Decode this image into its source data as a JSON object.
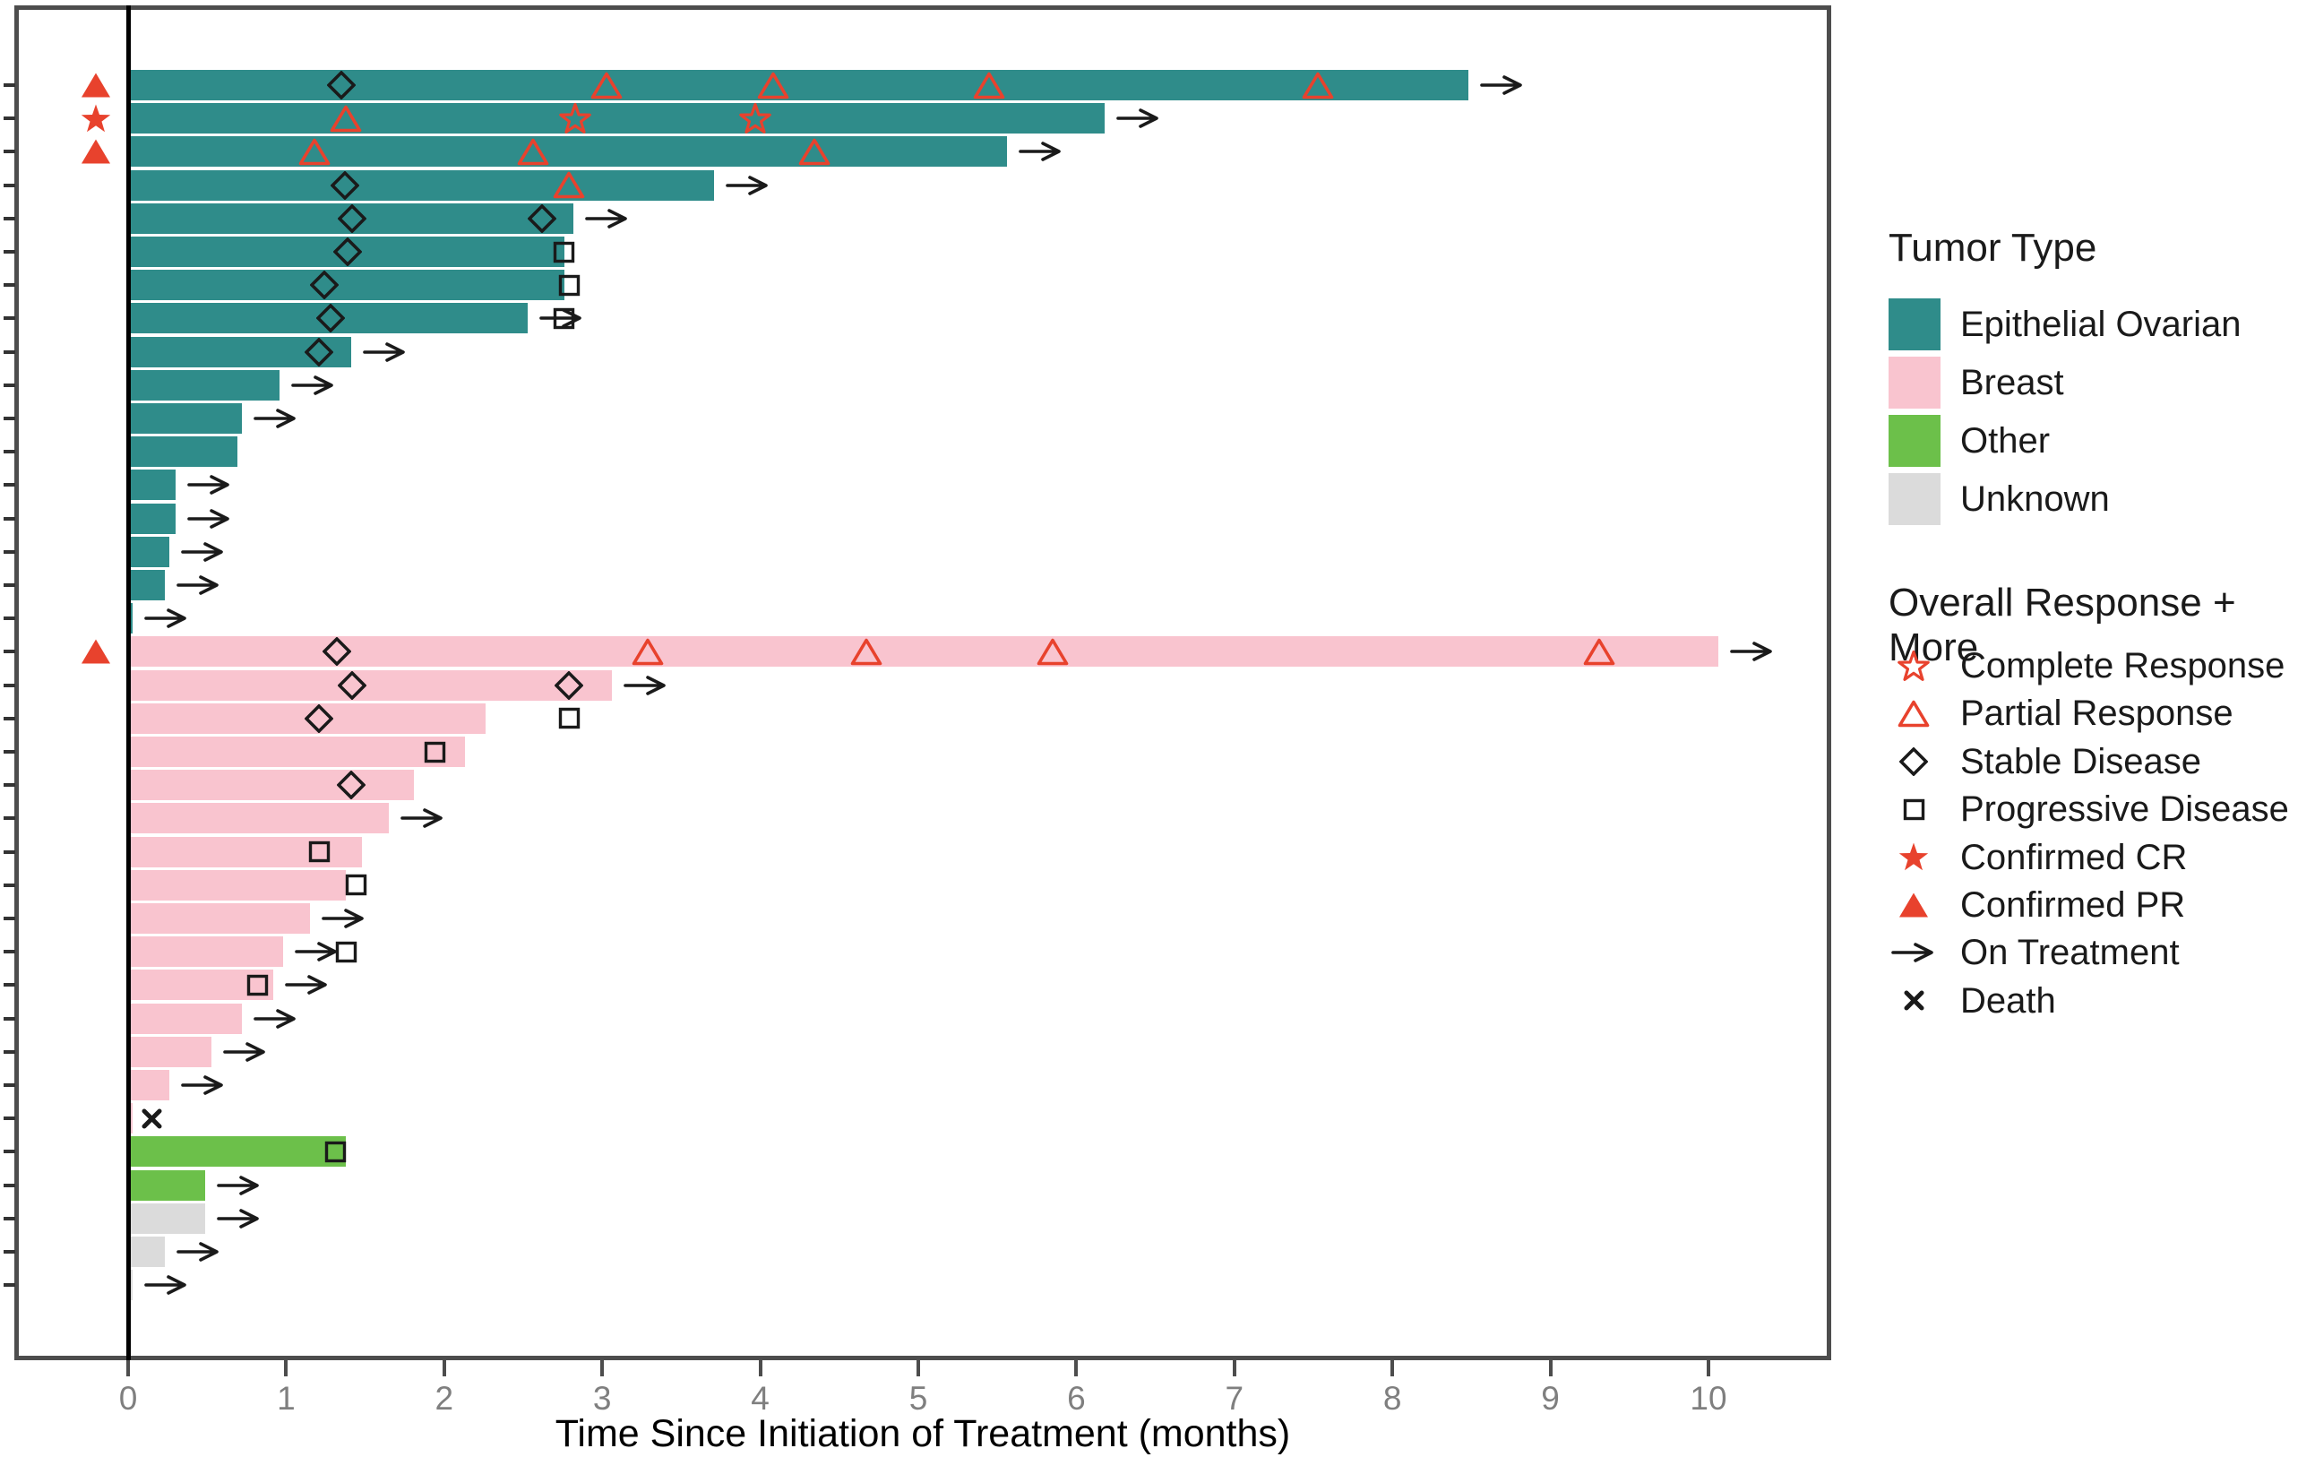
{
  "chart_data": {
    "type": "bar",
    "subtype": "swimmer-plot",
    "title": "",
    "xlabel": "Time Since Initiation of Treatment (months)",
    "ylabel": "",
    "x_ticks": [
      "0",
      "1",
      "2",
      "3",
      "4",
      "5",
      "6",
      "7",
      "8",
      "9",
      "10"
    ],
    "xlim": [
      -0.72,
      10.77
    ],
    "grid": "off",
    "legend_position": "right",
    "tumor_colors": {
      "EO": "#2F8C8A",
      "BR": "#F9C4CF",
      "OT": "#6CC04A",
      "UN": "#DBDBDB"
    },
    "marker_colors": {
      "response_red": "#E8422D",
      "marker_black": "#1A1A1A"
    },
    "patients": [
      {
        "tumor": "EO",
        "months": 8.48,
        "on_treatment": true,
        "confirmed": "CPR",
        "markers": [
          {
            "type": "SD",
            "month": 1.35
          },
          {
            "type": "PR",
            "month": 3.03
          },
          {
            "type": "PR",
            "month": 4.08
          },
          {
            "type": "PR",
            "month": 5.45
          },
          {
            "type": "PR",
            "month": 7.53
          }
        ]
      },
      {
        "tumor": "EO",
        "months": 6.18,
        "on_treatment": true,
        "confirmed": "CCR",
        "markers": [
          {
            "type": "PR",
            "month": 1.38
          },
          {
            "type": "CR",
            "month": 2.83
          },
          {
            "type": "CR",
            "month": 3.97
          }
        ]
      },
      {
        "tumor": "EO",
        "months": 5.56,
        "on_treatment": true,
        "confirmed": "CPR",
        "markers": [
          {
            "type": "PR",
            "month": 1.18
          },
          {
            "type": "PR",
            "month": 2.56
          },
          {
            "type": "PR",
            "month": 4.34
          }
        ]
      },
      {
        "tumor": "EO",
        "months": 3.71,
        "on_treatment": true,
        "confirmed": null,
        "markers": [
          {
            "type": "SD",
            "month": 1.37
          },
          {
            "type": "PR",
            "month": 2.79
          }
        ]
      },
      {
        "tumor": "EO",
        "months": 2.82,
        "on_treatment": true,
        "confirmed": null,
        "markers": [
          {
            "type": "SD",
            "month": 1.42
          },
          {
            "type": "SD",
            "month": 2.62
          }
        ]
      },
      {
        "tumor": "EO",
        "months": 2.76,
        "on_treatment": false,
        "confirmed": null,
        "markers": [
          {
            "type": "SD",
            "month": 1.39
          },
          {
            "type": "PD",
            "month": 2.76
          }
        ]
      },
      {
        "tumor": "EO",
        "months": 2.76,
        "on_treatment": false,
        "confirmed": null,
        "markers": [
          {
            "type": "SD",
            "month": 1.24
          },
          {
            "type": "PD",
            "month": 2.79
          }
        ]
      },
      {
        "tumor": "EO",
        "months": 2.53,
        "on_treatment": true,
        "confirmed": null,
        "markers": [
          {
            "type": "SD",
            "month": 1.28
          },
          {
            "type": "PD",
            "month": 2.76
          }
        ]
      },
      {
        "tumor": "EO",
        "months": 1.41,
        "on_treatment": true,
        "confirmed": null,
        "markers": [
          {
            "type": "SD",
            "month": 1.21
          }
        ]
      },
      {
        "tumor": "EO",
        "months": 0.96,
        "on_treatment": true,
        "confirmed": null,
        "markers": []
      },
      {
        "tumor": "EO",
        "months": 0.72,
        "on_treatment": true,
        "confirmed": null,
        "markers": []
      },
      {
        "tumor": "EO",
        "months": 0.69,
        "on_treatment": false,
        "confirmed": null,
        "markers": []
      },
      {
        "tumor": "EO",
        "months": 0.3,
        "on_treatment": true,
        "confirmed": null,
        "markers": []
      },
      {
        "tumor": "EO",
        "months": 0.3,
        "on_treatment": true,
        "confirmed": null,
        "markers": []
      },
      {
        "tumor": "EO",
        "months": 0.26,
        "on_treatment": true,
        "confirmed": null,
        "markers": []
      },
      {
        "tumor": "EO",
        "months": 0.23,
        "on_treatment": true,
        "confirmed": null,
        "markers": []
      },
      {
        "tumor": "EO",
        "months": 0.03,
        "on_treatment": true,
        "confirmed": null,
        "markers": []
      },
      {
        "tumor": "BR",
        "months": 10.06,
        "on_treatment": true,
        "confirmed": "CPR",
        "markers": [
          {
            "type": "SD",
            "month": 1.32
          },
          {
            "type": "PR",
            "month": 3.29
          },
          {
            "type": "PR",
            "month": 4.67
          },
          {
            "type": "PR",
            "month": 5.85
          },
          {
            "type": "PR",
            "month": 9.31
          }
        ]
      },
      {
        "tumor": "BR",
        "months": 3.06,
        "on_treatment": true,
        "confirmed": null,
        "markers": [
          {
            "type": "SD",
            "month": 1.42
          },
          {
            "type": "SD",
            "month": 2.79
          }
        ]
      },
      {
        "tumor": "BR",
        "months": 2.26,
        "on_treatment": false,
        "confirmed": null,
        "markers": [
          {
            "type": "SD",
            "month": 1.21
          },
          {
            "type": "PD",
            "month": 2.79
          }
        ]
      },
      {
        "tumor": "BR",
        "months": 2.13,
        "on_treatment": false,
        "confirmed": null,
        "markers": [
          {
            "type": "PD",
            "month": 1.94
          }
        ]
      },
      {
        "tumor": "BR",
        "months": 1.81,
        "on_treatment": false,
        "confirmed": null,
        "markers": [
          {
            "type": "SD",
            "month": 1.41
          }
        ]
      },
      {
        "tumor": "BR",
        "months": 1.65,
        "on_treatment": true,
        "confirmed": null,
        "markers": []
      },
      {
        "tumor": "BR",
        "months": 1.48,
        "on_treatment": false,
        "confirmed": null,
        "markers": [
          {
            "type": "PD",
            "month": 1.21
          }
        ]
      },
      {
        "tumor": "BR",
        "months": 1.38,
        "on_treatment": false,
        "confirmed": null,
        "markers": [
          {
            "type": "PD",
            "month": 1.44
          }
        ]
      },
      {
        "tumor": "BR",
        "months": 1.15,
        "on_treatment": true,
        "confirmed": null,
        "markers": []
      },
      {
        "tumor": "BR",
        "months": 0.98,
        "on_treatment": true,
        "confirmed": null,
        "markers": [
          {
            "type": "PD",
            "month": 1.38
          }
        ]
      },
      {
        "tumor": "BR",
        "months": 0.92,
        "on_treatment": true,
        "confirmed": null,
        "markers": [
          {
            "type": "PD",
            "month": 0.82
          }
        ]
      },
      {
        "tumor": "BR",
        "months": 0.72,
        "on_treatment": true,
        "confirmed": null,
        "markers": []
      },
      {
        "tumor": "BR",
        "months": 0.53,
        "on_treatment": true,
        "confirmed": null,
        "markers": []
      },
      {
        "tumor": "BR",
        "months": 0.26,
        "on_treatment": true,
        "confirmed": null,
        "markers": []
      },
      {
        "tumor": "BR",
        "months": 0.03,
        "on_treatment": false,
        "confirmed": null,
        "markers": [
          {
            "type": "DEATH",
            "month": 0.15
          }
        ]
      },
      {
        "tumor": "OT",
        "months": 1.38,
        "on_treatment": false,
        "confirmed": null,
        "markers": [
          {
            "type": "PD",
            "month": 1.31
          }
        ]
      },
      {
        "tumor": "OT",
        "months": 0.49,
        "on_treatment": true,
        "confirmed": null,
        "markers": []
      },
      {
        "tumor": "UN",
        "months": 0.49,
        "on_treatment": true,
        "confirmed": null,
        "markers": []
      },
      {
        "tumor": "UN",
        "months": 0.23,
        "on_treatment": true,
        "confirmed": null,
        "markers": []
      },
      {
        "tumor": "UN",
        "months": 0.03,
        "on_treatment": true,
        "confirmed": null,
        "markers": []
      }
    ]
  },
  "legend": {
    "tumor": {
      "title": "Tumor Type",
      "items": [
        {
          "label": "Epithelial Ovarian",
          "color": "#2F8C8A"
        },
        {
          "label": "Breast",
          "color": "#F9C4CF"
        },
        {
          "label": "Other",
          "color": "#6CC04A"
        },
        {
          "label": "Unknown",
          "color": "#DBDBDB"
        }
      ]
    },
    "response": {
      "title": "Overall Response + More",
      "items": [
        {
          "label": "Complete Response",
          "symbol": "CR"
        },
        {
          "label": "Partial Response",
          "symbol": "PR"
        },
        {
          "label": "Stable Disease",
          "symbol": "SD"
        },
        {
          "label": "Progressive Disease",
          "symbol": "PD"
        },
        {
          "label": "Confirmed CR",
          "symbol": "CCR"
        },
        {
          "label": "Confirmed PR",
          "symbol": "CPR"
        },
        {
          "label": "On Treatment",
          "symbol": "ARROW"
        },
        {
          "label": "Death",
          "symbol": "DEATH"
        }
      ]
    }
  },
  "axis": {
    "x_title": "Time Since Initiation of Treatment (months)"
  }
}
